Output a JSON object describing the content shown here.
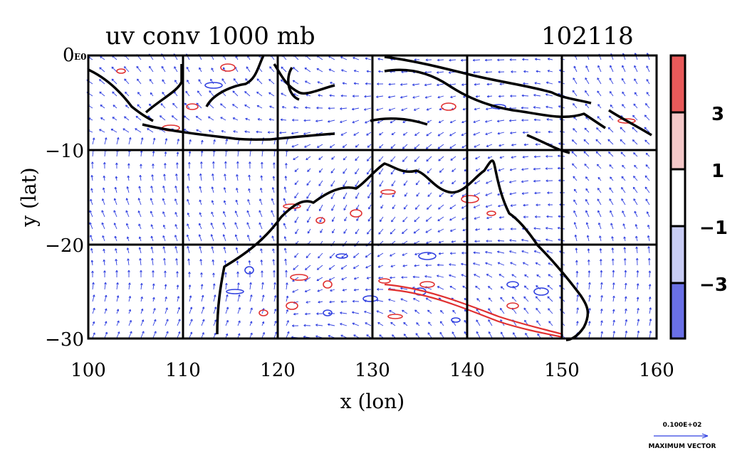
{
  "chart_data": {
    "type": "map",
    "title": "uv conv 1000 mb",
    "timestamp": "102118",
    "xlabel": "x (lon)",
    "ylabel": "y (lat)",
    "xlim": [
      100,
      160
    ],
    "ylim": [
      -30,
      0
    ],
    "x_ticks": [
      "100",
      "110",
      "120",
      "130",
      "140",
      "150",
      "160"
    ],
    "y_ticks": [
      "0",
      "−10",
      "−20",
      "−30"
    ],
    "y_top_suffix": "E0",
    "grid": "every 10 degrees",
    "field": "wind vectors (blue) with convergence contours (red positive, blue negative)",
    "colorbar": {
      "levels": [
        "3",
        "1",
        "−1",
        "−3"
      ],
      "bins": [
        {
          "from": 3,
          "to": null,
          "color": "#e85a5a"
        },
        {
          "from": 1,
          "to": 3,
          "color": "#f4c8c8"
        },
        {
          "from": -1,
          "to": 1,
          "color": "#ffffff"
        },
        {
          "from": -3,
          "to": -1,
          "color": "#c8ccf4"
        },
        {
          "from": null,
          "to": -3,
          "color": "#6a70e6"
        }
      ]
    },
    "vector_key": {
      "value": "0.100E+02",
      "label": "MAXIMUM VECTOR",
      "color": "#3040e0"
    }
  }
}
